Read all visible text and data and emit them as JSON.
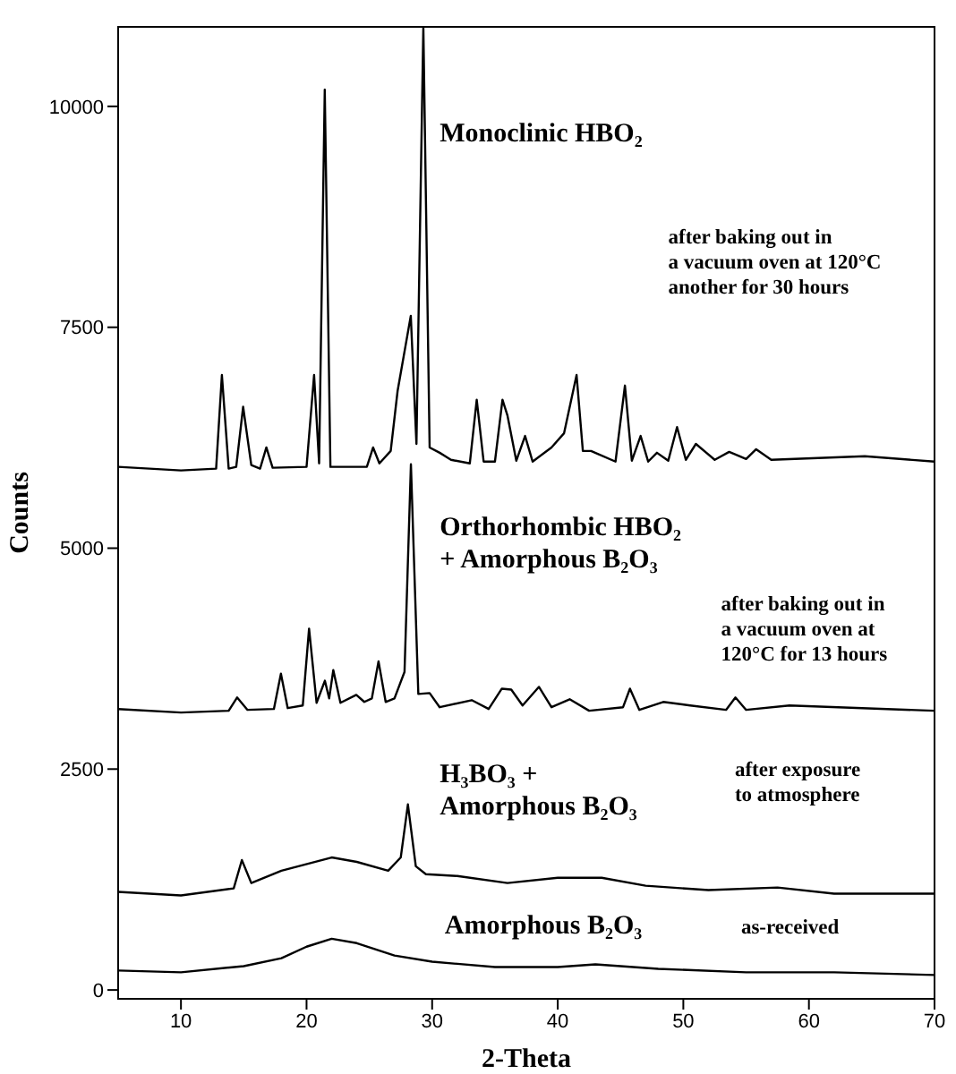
{
  "chart_data": {
    "type": "line",
    "xlabel": "2-Theta",
    "ylabel": "Counts",
    "xlim": [
      5,
      70
    ],
    "xticks": [
      10,
      20,
      30,
      40,
      50,
      60,
      70
    ],
    "ylim": [
      -100,
      10900
    ],
    "yticks": [
      0,
      2500,
      5000,
      7500,
      10000
    ],
    "marker": "none",
    "line_style": "solid",
    "series": [
      {
        "name": "Monoclinic HBO₂",
        "color": "#000000",
        "x": [
          5,
          10,
          12.8,
          13.26,
          13.8,
          14.4,
          14.95,
          15.6,
          16.3,
          16.8,
          17.3,
          20.0,
          20.6,
          21.0,
          21.45,
          21.9,
          24.8,
          25.3,
          25.8,
          26.7,
          27.25,
          28.3,
          28.75,
          29.3,
          29.8,
          30.6,
          31.5,
          33.0,
          33.55,
          34.1,
          35.0,
          35.6,
          36.0,
          36.7,
          37.4,
          38.0,
          39.5,
          40.5,
          41.5,
          42.0,
          42.65,
          44.6,
          45.35,
          45.9,
          46.6,
          47.2,
          47.9,
          48.8,
          49.5,
          50.2,
          51.0,
          52.5,
          53.65,
          55.0,
          55.8,
          57,
          64.45,
          70
        ],
        "values": [
          5920,
          5880,
          5900,
          6960,
          5900,
          5920,
          6600,
          5940,
          5900,
          6140,
          5910,
          5920,
          6960,
          5960,
          10190,
          5920,
          5920,
          6140,
          5960,
          6100,
          6780,
          7630,
          6180,
          10900,
          6140,
          6080,
          6000,
          5960,
          6680,
          5980,
          5980,
          6680,
          6500,
          5990,
          6270,
          5980,
          6140,
          6300,
          6960,
          6100,
          6100,
          5980,
          6840,
          5990,
          6270,
          5980,
          6080,
          5990,
          6370,
          6000,
          6180,
          6000,
          6090,
          6010,
          6120,
          6000,
          6040,
          5980
        ]
      },
      {
        "name": "Orthorhombic HBO₂\n+ Amorphous B₂O₃",
        "color": "#000000",
        "x": [
          5,
          10,
          13.8,
          14.47,
          15.3,
          17.4,
          17.96,
          18.5,
          19.7,
          20.2,
          20.8,
          21.46,
          21.8,
          22.13,
          22.7,
          23.96,
          24.6,
          25.2,
          25.73,
          26.3,
          27.0,
          27.8,
          28.31,
          28.9,
          29.8,
          30.6,
          33.15,
          34.5,
          35.55,
          36.3,
          37.2,
          38.5,
          39.5,
          40.95,
          42.5,
          45.2,
          45.75,
          46.5,
          48.4,
          50.55,
          53.4,
          54.15,
          55,
          58.45,
          70
        ],
        "values": [
          3180,
          3140,
          3160,
          3310,
          3170,
          3180,
          3580,
          3190,
          3220,
          4090,
          3250,
          3500,
          3300,
          3620,
          3250,
          3340,
          3260,
          3300,
          3720,
          3260,
          3300,
          3600,
          5950,
          3350,
          3360,
          3200,
          3280,
          3180,
          3410,
          3400,
          3220,
          3430,
          3200,
          3290,
          3160,
          3200,
          3410,
          3170,
          3260,
          3220,
          3170,
          3310,
          3170,
          3220,
          3160
        ]
      },
      {
        "name": "H₃BO₃ +\nAmorphous B₂O₃",
        "color": "#000000",
        "x": [
          5,
          10,
          14.2,
          14.85,
          15.6,
          18,
          22,
          24,
          26.5,
          27.5,
          28.07,
          28.7,
          29.5,
          32,
          36,
          40,
          43.5,
          47,
          52,
          57.5,
          62,
          70
        ],
        "values": [
          1110,
          1070,
          1150,
          1470,
          1210,
          1350,
          1500,
          1450,
          1350,
          1500,
          2100,
          1400,
          1310,
          1290,
          1210,
          1270,
          1270,
          1180,
          1130,
          1160,
          1090,
          1090
        ]
      },
      {
        "name": "Amorphous B₂O₃",
        "color": "#000000",
        "x": [
          5,
          10,
          15,
          18,
          20,
          22,
          24,
          27,
          30,
          35,
          40,
          43,
          48,
          55,
          62,
          70
        ],
        "values": [
          220,
          200,
          270,
          360,
          490,
          580,
          530,
          390,
          320,
          260,
          260,
          290,
          240,
          200,
          200,
          170
        ]
      }
    ],
    "annotations": [
      "after baking out in\na vacuum oven at 120°C\nanother for 30 hours",
      "after baking out in\na vacuum oven at\n120°C for 13 hours",
      "after exposure\nto atmosphere",
      "as-received"
    ]
  }
}
